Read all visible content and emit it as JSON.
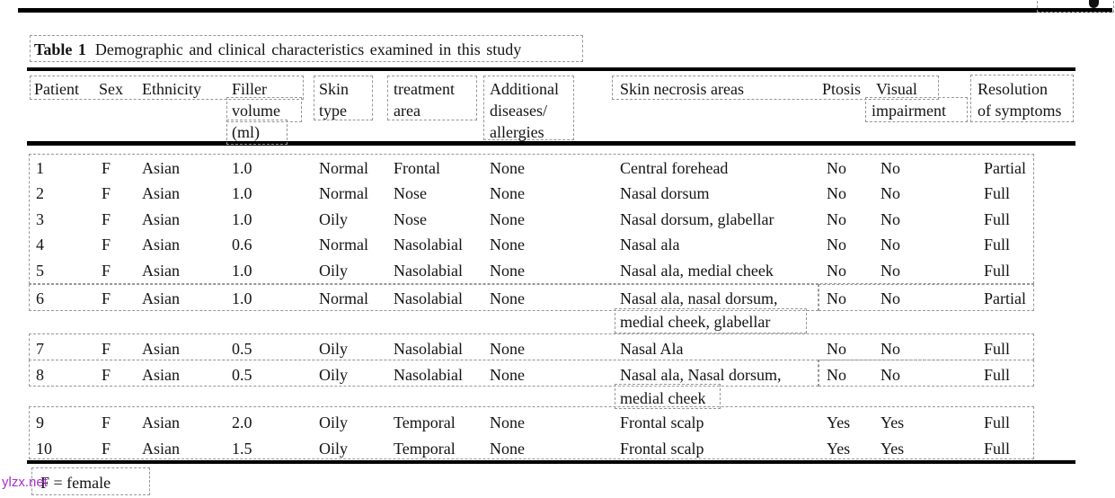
{
  "title": {
    "label": "Table 1",
    "text": "Demographic and clinical characteristics examined in this study"
  },
  "header": {
    "patient": "Patient",
    "sex": "Sex",
    "ethnicity": "Ethnicity",
    "filler": "Filler",
    "volume": "volume",
    "ml": "(ml)",
    "skin": "Skin",
    "type": "type",
    "treatment": "treatment",
    "area": "area",
    "additional": "Additional",
    "diseases": "diseases/",
    "allergies": "allergies",
    "necrosis": "Skin necrosis areas",
    "ptosis": "Ptosis",
    "visual": "Visual",
    "impairment": "impairment",
    "resolution": "Resolution",
    "of_symptoms": "of symptoms"
  },
  "rows": [
    {
      "patient": "1",
      "sex": "F",
      "ethnicity": "Asian",
      "volume": "1.0",
      "skin": "Normal",
      "area": "Frontal",
      "additional": "None",
      "necrosis": "Central forehead",
      "ptosis": "No",
      "visual": "No",
      "resolution": "Partial"
    },
    {
      "patient": "2",
      "sex": "F",
      "ethnicity": "Asian",
      "volume": "1.0",
      "skin": "Normal",
      "area": "Nose",
      "additional": "None",
      "necrosis": "Nasal dorsum",
      "ptosis": "No",
      "visual": "No",
      "resolution": "Full"
    },
    {
      "patient": "3",
      "sex": "F",
      "ethnicity": "Asian",
      "volume": "1.0",
      "skin": "Oily",
      "area": "Nose",
      "additional": "None",
      "necrosis": "Nasal dorsum, glabellar",
      "ptosis": "No",
      "visual": "No",
      "resolution": "Full"
    },
    {
      "patient": "4",
      "sex": "F",
      "ethnicity": "Asian",
      "volume": "0.6",
      "skin": "Normal",
      "area": "Nasolabial",
      "additional": "None",
      "necrosis": "Nasal ala",
      "ptosis": "No",
      "visual": "No",
      "resolution": "Full"
    },
    {
      "patient": "5",
      "sex": "F",
      "ethnicity": "Asian",
      "volume": "1.0",
      "skin": "Oily",
      "area": "Nasolabial",
      "additional": "None",
      "necrosis": "Nasal ala, medial cheek",
      "ptosis": "No",
      "visual": "No",
      "resolution": "Full"
    },
    {
      "patient": "6",
      "sex": "F",
      "ethnicity": "Asian",
      "volume": "1.0",
      "skin": "Normal",
      "area": "Nasolabial",
      "additional": "None",
      "necrosis": "Nasal ala, nasal dorsum,",
      "necrosis2": "medial cheek, glabellar",
      "ptosis": "No",
      "visual": "No",
      "resolution": "Partial"
    },
    {
      "patient": "7",
      "sex": "F",
      "ethnicity": "Asian",
      "volume": "0.5",
      "skin": "Oily",
      "area": "Nasolabial",
      "additional": "None",
      "necrosis": "Nasal Ala",
      "ptosis": "No",
      "visual": "No",
      "resolution": "Full"
    },
    {
      "patient": "8",
      "sex": "F",
      "ethnicity": "Asian",
      "volume": "0.5",
      "skin": "Oily",
      "area": "Nasolabial",
      "additional": "None",
      "necrosis": "Nasal ala, Nasal dorsum,",
      "necrosis2": "medial cheek",
      "ptosis": "No",
      "visual": "No",
      "resolution": "Full"
    },
    {
      "patient": "9",
      "sex": "F",
      "ethnicity": "Asian",
      "volume": "2.0",
      "skin": "Oily",
      "area": "Temporal",
      "additional": "None",
      "necrosis": "Frontal scalp",
      "ptosis": "Yes",
      "visual": "Yes",
      "resolution": "Full"
    },
    {
      "patient": "10",
      "sex": "F",
      "ethnicity": "Asian",
      "volume": "1.5",
      "skin": "Oily",
      "area": "Temporal",
      "additional": "None",
      "necrosis": "Frontal scalp",
      "ptosis": "Yes",
      "visual": "Yes",
      "resolution": "Full"
    }
  ],
  "footnote": "F = female",
  "watermark": "ylzx.net",
  "colors": {
    "watermark": "#a92ecb",
    "annotation_box": "#969696"
  }
}
